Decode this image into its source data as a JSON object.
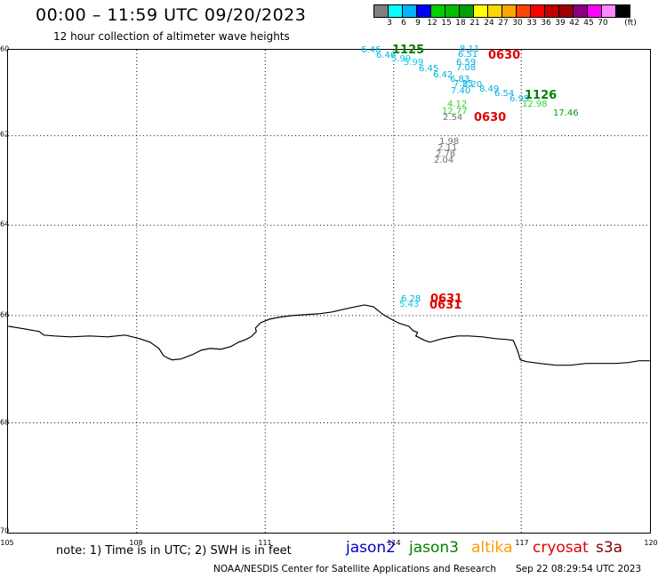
{
  "header": {
    "title": "00:00 – 11:59 UTC 09/20/2023",
    "subtitle": "12 hour collection of altimeter wave heights"
  },
  "scale": {
    "colors": [
      "#7f7f7f",
      "#00ffff",
      "#00b4ff",
      "#0000ff",
      "#00d000",
      "#00c000",
      "#00a000",
      "#ffff00",
      "#ffd700",
      "#ffa500",
      "#ff4500",
      "#ff0000",
      "#c00000",
      "#a00000",
      "#8b0080",
      "#ff00ff",
      "#ff88ff",
      "#000000"
    ],
    "labels": [
      "3",
      "6",
      "9",
      "12",
      "15",
      "18",
      "21",
      "24",
      "27",
      "30",
      "33",
      "36",
      "39",
      "42",
      "45",
      "70"
    ],
    "unit": "(ft)"
  },
  "map": {
    "y_labels": [
      "60",
      "62",
      "64",
      "66",
      "68",
      "70"
    ],
    "x_labels": [
      "105",
      "108",
      "111",
      "114",
      "117",
      "120"
    ],
    "wave_labels": [
      {
        "text": "6.46",
        "color": "#00b0e0"
      },
      {
        "text": "6.46",
        "color": "#00b0e0"
      },
      {
        "text": "5.99",
        "color": "#00c8e0"
      },
      {
        "text": "5.99",
        "color": "#00c8e0"
      },
      {
        "text": "6.45",
        "color": "#00b0e0"
      },
      {
        "text": "6.42",
        "color": "#00b0e0"
      },
      {
        "text": "6.83",
        "color": "#00b0e0"
      },
      {
        "text": "7.25",
        "color": "#00b0e0"
      },
      {
        "text": "8.20",
        "color": "#00b0e0"
      },
      {
        "text": "7.40",
        "color": "#00b0e0"
      },
      {
        "text": "8.49",
        "color": "#00b0e0"
      },
      {
        "text": "6.54",
        "color": "#00b0e0"
      },
      {
        "text": "6.99",
        "color": "#00b0e0"
      },
      {
        "text": "8.11",
        "color": "#00b0e0"
      },
      {
        "text": "6.51",
        "color": "#00b0e0"
      },
      {
        "text": "6.59",
        "color": "#00b0e0"
      },
      {
        "text": "7.08",
        "color": "#00b0e0"
      },
      {
        "text": "12.98",
        "color": "#30d030"
      },
      {
        "text": "17.46",
        "color": "#00a000"
      },
      {
        "text": "4.12",
        "color": "#30d030"
      },
      {
        "text": "12.77",
        "color": "#30d030"
      },
      {
        "text": "2.54",
        "color": "#707070"
      },
      {
        "text": "1.98",
        "color": "#707070"
      },
      {
        "text": "2.11",
        "color": "#707070"
      },
      {
        "text": "2.78",
        "color": "#707070"
      },
      {
        "text": "2.04",
        "color": "#707070"
      },
      {
        "text": "6.28",
        "color": "#00b0e0"
      },
      {
        "text": "5.43",
        "color": "#00c8e0"
      }
    ],
    "time_labels": [
      {
        "text": "1125",
        "color": "#008000"
      },
      {
        "text": "0630",
        "color": "#e00000"
      },
      {
        "text": "1126",
        "color": "#008000"
      },
      {
        "text": "0630",
        "color": "#e00000"
      },
      {
        "text": "0631",
        "color": "#e00000"
      },
      {
        "text": "0631",
        "color": "#e00000"
      }
    ]
  },
  "footer": {
    "note": "note: 1) Time is in UTC; 2) SWH is in feet",
    "satellites": [
      {
        "name": "jason2",
        "color": "#0000d0"
      },
      {
        "name": "jason3",
        "color": "#008000"
      },
      {
        "name": "altika",
        "color": "#ff9900"
      },
      {
        "name": "cryosat",
        "color": "#e00000"
      },
      {
        "name": "s3a",
        "color": "#800000"
      }
    ],
    "credit": "NOAA/NESDIS Center for Satellite Applications and Research",
    "timestamp": "Sep 22 08:29:54 UTC 2023"
  }
}
